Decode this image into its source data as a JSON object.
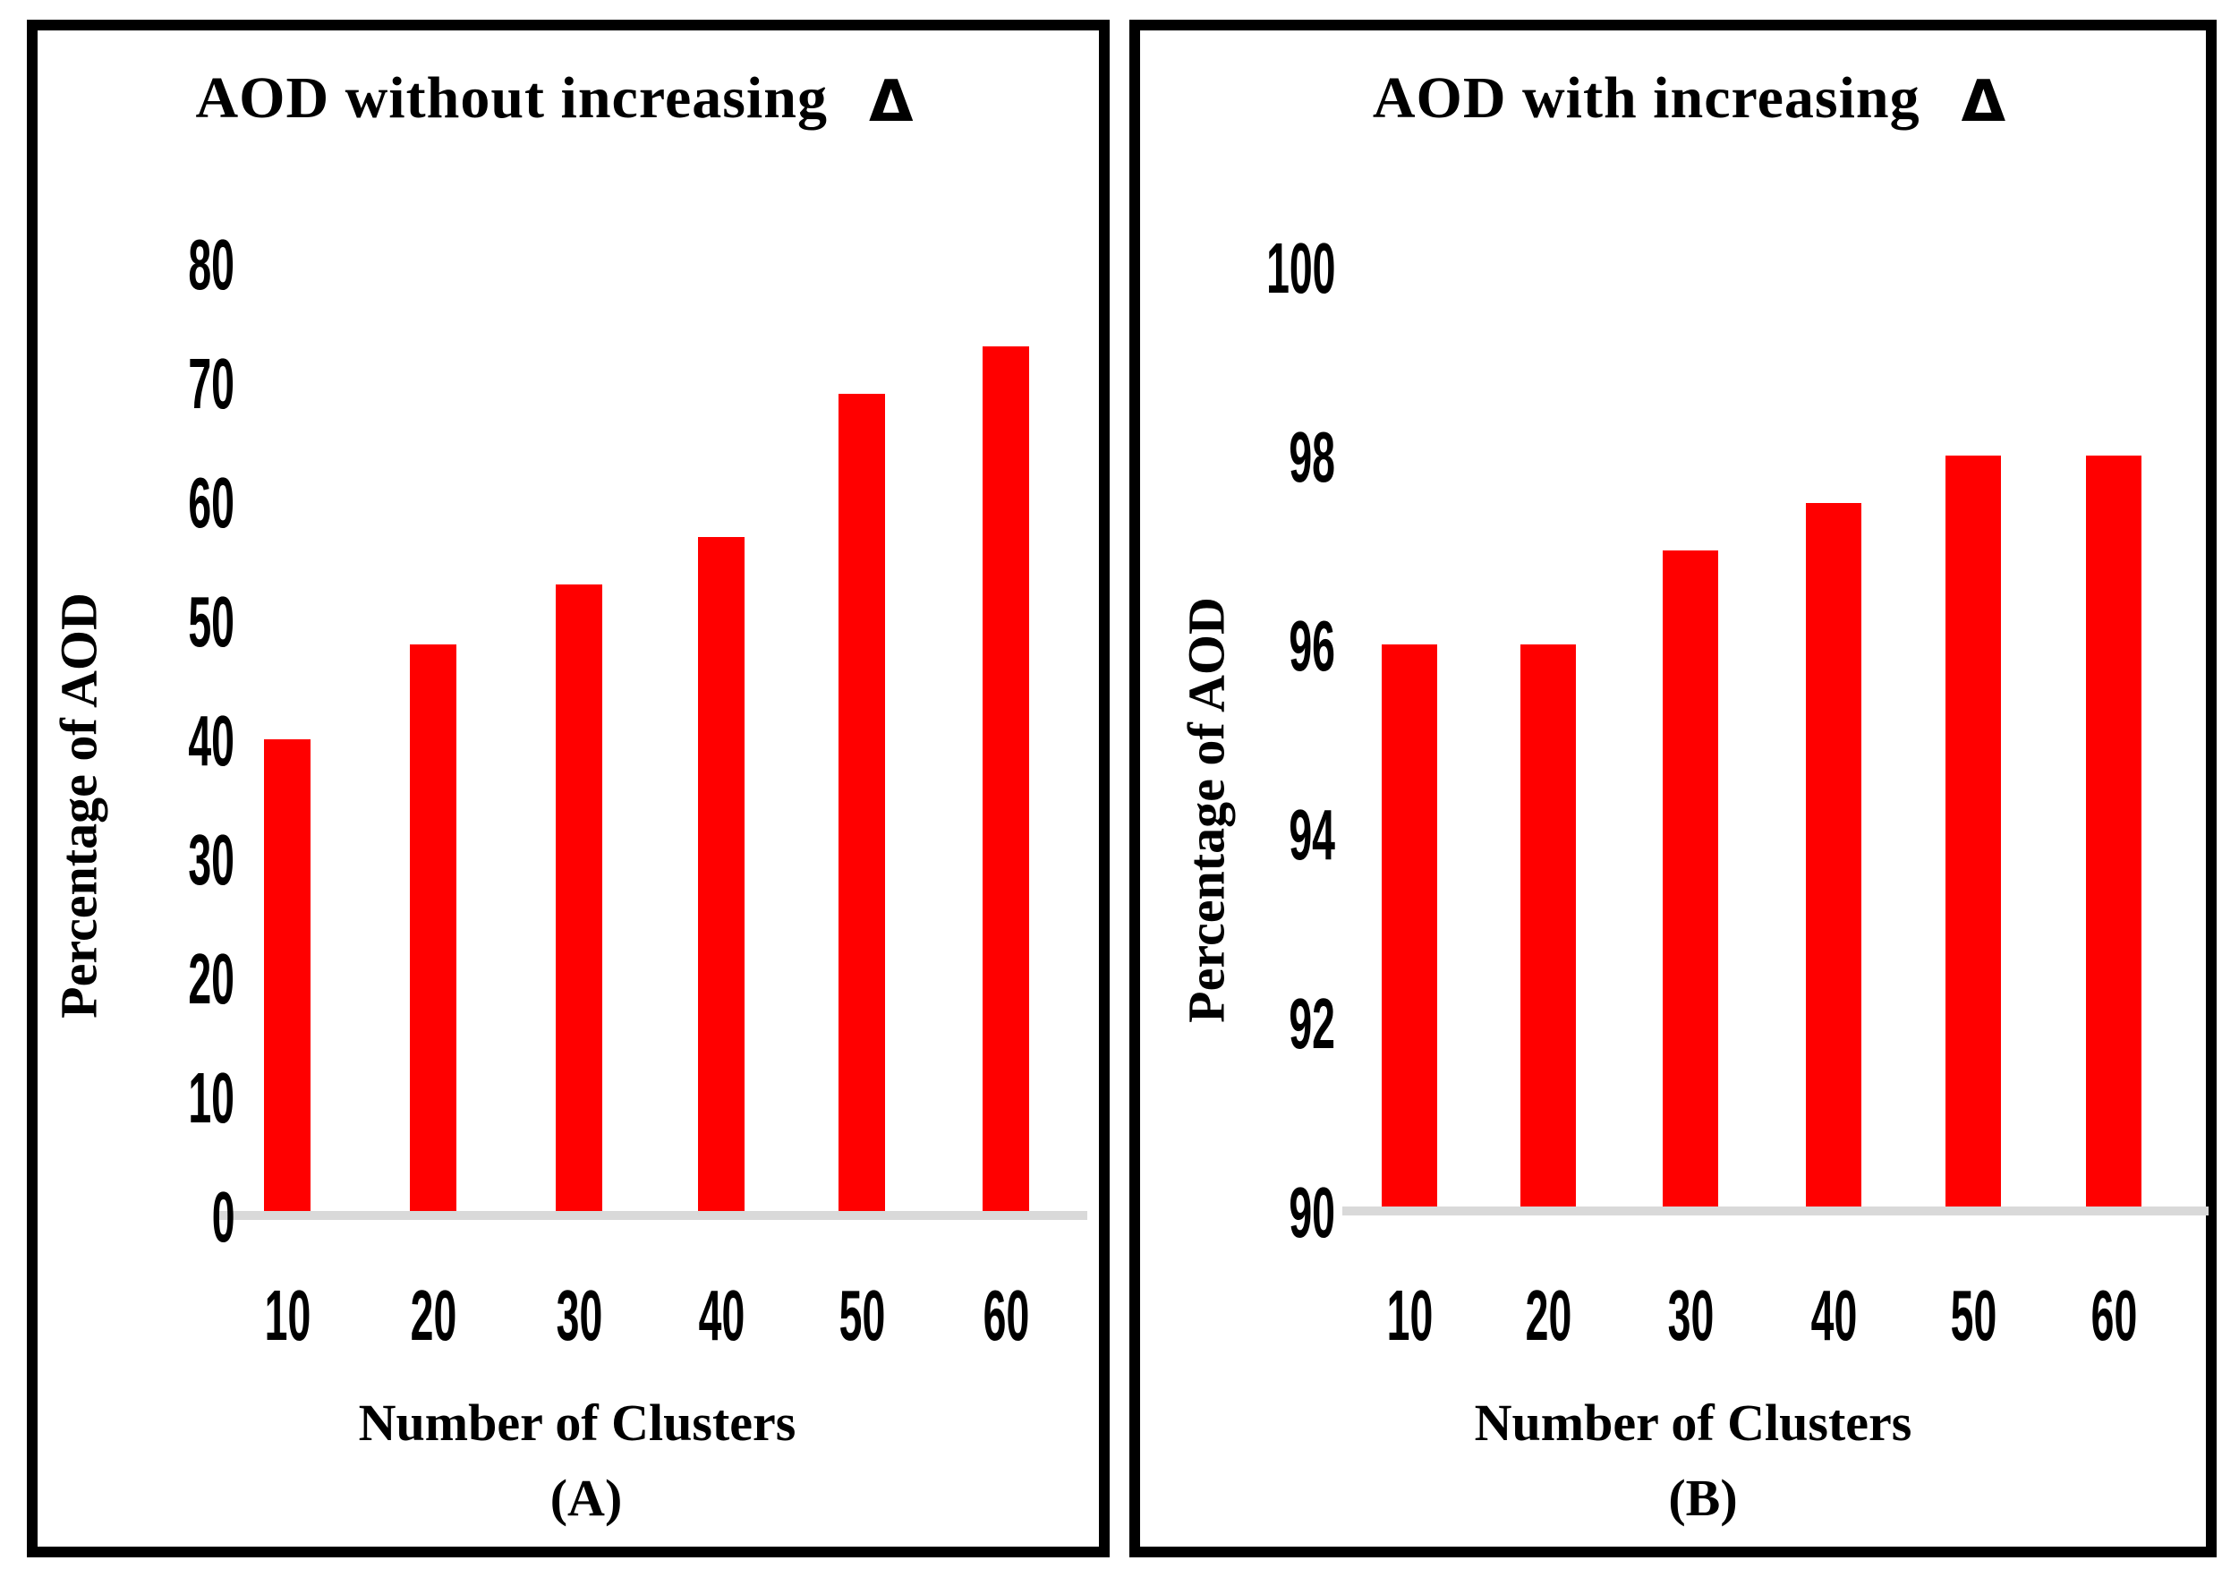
{
  "figure": {
    "panels": [
      {
        "title_text": "AOD without increasing",
        "delta_symbol": "Δ",
        "y_axis_title": "Percentage of AOD",
        "x_axis_title": "Number of Clusters",
        "caption": "(A)"
      },
      {
        "title_text": "AOD with increasing",
        "delta_symbol": "Δ",
        "y_axis_title": "Percentage of AOD",
        "x_axis_title": "Number of Clusters",
        "caption": "(B)"
      }
    ]
  },
  "chart_data": [
    {
      "type": "bar",
      "title": "AOD without increasing Δ",
      "categories": [
        "10",
        "20",
        "30",
        "40",
        "50",
        "60"
      ],
      "values": [
        40,
        48,
        53,
        57,
        69,
        73
      ],
      "xlabel": "Number of Clusters",
      "ylabel": "Percentage of AOD",
      "ylim": [
        0,
        80
      ],
      "yticks": [
        0,
        10,
        20,
        30,
        40,
        50,
        60,
        70,
        80
      ],
      "bar_color": "#FF0000",
      "baseline_color": "#D9D9D9",
      "grid": false,
      "legend": null,
      "caption": "(A)"
    },
    {
      "type": "bar",
      "title": "AOD with increasing Δ",
      "categories": [
        "10",
        "20",
        "30",
        "40",
        "50",
        "60"
      ],
      "values": [
        96,
        96,
        97,
        97.5,
        98,
        98
      ],
      "xlabel": "Number of Clusters",
      "ylabel": "Percentage of AOD",
      "ylim": [
        90,
        100
      ],
      "yticks": [
        90,
        92,
        94,
        96,
        98,
        100
      ],
      "bar_color": "#FF0000",
      "baseline_color": "#D9D9D9",
      "grid": false,
      "legend": null,
      "caption": "(B)"
    }
  ]
}
